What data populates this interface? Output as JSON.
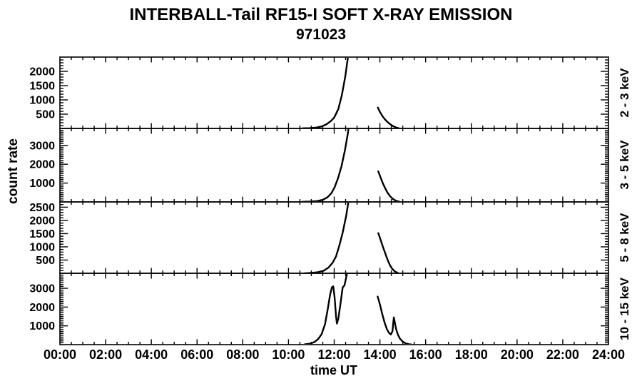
{
  "colors": {
    "line": "#000000",
    "background": "#ffffff",
    "text": "#000000"
  },
  "chart_data": {
    "type": "line",
    "title": "INTERBALL-Tail RF15-I SOFT X-RAY EMISSION",
    "subtitle": "971023",
    "xlabel": "time UT",
    "ylabel": "count rate",
    "xlim": [
      0,
      24
    ],
    "x_tick_labels": [
      "00:00",
      "02:00",
      "04:00",
      "06:00",
      "08:00",
      "10:00",
      "12:00",
      "14:00",
      "16:00",
      "18:00",
      "20:00",
      "22:00",
      "24:00"
    ],
    "x_major_step_hours": 2,
    "x_minor_step_hours": 0.5,
    "grid": false,
    "legend_position": "right-rotated",
    "panels": [
      {
        "label": "2 - 3 keV",
        "ylim": [
          0,
          2500
        ],
        "y_major_ticks": [
          500,
          1000,
          1500,
          2000
        ],
        "y_minor_step": 100,
        "segments": [
          [
            [
              10.6,
              4
            ],
            [
              10.9,
              10
            ],
            [
              11.2,
              28
            ],
            [
              11.45,
              70
            ],
            [
              11.65,
              140
            ],
            [
              11.85,
              255
            ],
            [
              12.0,
              380
            ],
            [
              12.18,
              680
            ],
            [
              12.33,
              1150
            ],
            [
              12.48,
              1800
            ],
            [
              12.6,
              2480
            ],
            [
              12.7,
              3400
            ]
          ],
          [
            [
              13.91,
              730
            ],
            [
              14.0,
              580
            ],
            [
              14.1,
              445
            ],
            [
              14.2,
              335
            ],
            [
              14.32,
              235
            ],
            [
              14.45,
              145
            ],
            [
              14.58,
              80
            ],
            [
              14.7,
              35
            ],
            [
              14.82,
              8
            ]
          ]
        ]
      },
      {
        "label": "3 - 5 keV",
        "ylim": [
          0,
          3900
        ],
        "y_major_ticks": [
          1000,
          2000,
          3000
        ],
        "y_minor_step": 100,
        "segments": [
          [
            [
              10.6,
              6
            ],
            [
              10.95,
              18
            ],
            [
              11.25,
              45
            ],
            [
              11.5,
              110
            ],
            [
              11.7,
              240
            ],
            [
              11.88,
              470
            ],
            [
              12.02,
              780
            ],
            [
              12.17,
              1260
            ],
            [
              12.32,
              1900
            ],
            [
              12.47,
              2750
            ],
            [
              12.6,
              3650
            ],
            [
              12.7,
              4600
            ]
          ],
          [
            [
              13.93,
              1620
            ],
            [
              14.02,
              1330
            ],
            [
              14.12,
              1020
            ],
            [
              14.22,
              755
            ],
            [
              14.32,
              520
            ],
            [
              14.44,
              310
            ],
            [
              14.57,
              160
            ],
            [
              14.7,
              62
            ],
            [
              14.85,
              10
            ]
          ]
        ]
      },
      {
        "label": "5 - 8 keV",
        "ylim": [
          0,
          2700
        ],
        "y_major_ticks": [
          500,
          1000,
          1500,
          2000,
          2500
        ],
        "y_minor_step": 100,
        "segments": [
          [
            [
              10.7,
              4
            ],
            [
              11.0,
              14
            ],
            [
              11.3,
              42
            ],
            [
              11.55,
              100
            ],
            [
              11.75,
              215
            ],
            [
              11.93,
              400
            ],
            [
              12.08,
              640
            ],
            [
              12.22,
              1030
            ],
            [
              12.37,
              1540
            ],
            [
              12.52,
              2160
            ],
            [
              12.67,
              2950
            ]
          ],
          [
            [
              13.93,
              1520
            ],
            [
              14.03,
              1270
            ],
            [
              14.13,
              1010
            ],
            [
              14.23,
              760
            ],
            [
              14.33,
              520
            ],
            [
              14.43,
              320
            ],
            [
              14.53,
              175
            ],
            [
              14.66,
              65
            ],
            [
              14.79,
              12
            ]
          ]
        ]
      },
      {
        "label": "10 - 15 keV",
        "ylim": [
          0,
          3800
        ],
        "y_major_ticks": [
          1000,
          2000,
          3000
        ],
        "y_minor_step": 100,
        "segments": [
          [
            [
              10.7,
              12
            ],
            [
              10.95,
              55
            ],
            [
              11.15,
              150
            ],
            [
              11.3,
              300
            ],
            [
              11.45,
              560
            ],
            [
              11.6,
              1100
            ],
            [
              11.72,
              1900
            ],
            [
              11.82,
              2650
            ],
            [
              11.9,
              3050
            ],
            [
              11.96,
              3100
            ],
            [
              12.02,
              2500
            ],
            [
              12.08,
              1500
            ],
            [
              12.12,
              1120
            ],
            [
              12.18,
              1380
            ],
            [
              12.27,
              2150
            ],
            [
              12.37,
              3050
            ],
            [
              12.45,
              3150
            ],
            [
              12.58,
              3900
            ],
            [
              12.65,
              4400
            ]
          ],
          [
            [
              13.9,
              2560
            ],
            [
              14.0,
              2140
            ],
            [
              14.1,
              1640
            ],
            [
              14.2,
              1190
            ],
            [
              14.3,
              840
            ],
            [
              14.4,
              620
            ],
            [
              14.48,
              540
            ],
            [
              14.55,
              720
            ],
            [
              14.61,
              1450
            ],
            [
              14.65,
              1200
            ],
            [
              14.71,
              820
            ],
            [
              14.79,
              520
            ],
            [
              14.88,
              310
            ],
            [
              15.0,
              160
            ],
            [
              15.12,
              70
            ],
            [
              15.25,
              25
            ],
            [
              15.38,
              6
            ]
          ]
        ]
      }
    ]
  }
}
